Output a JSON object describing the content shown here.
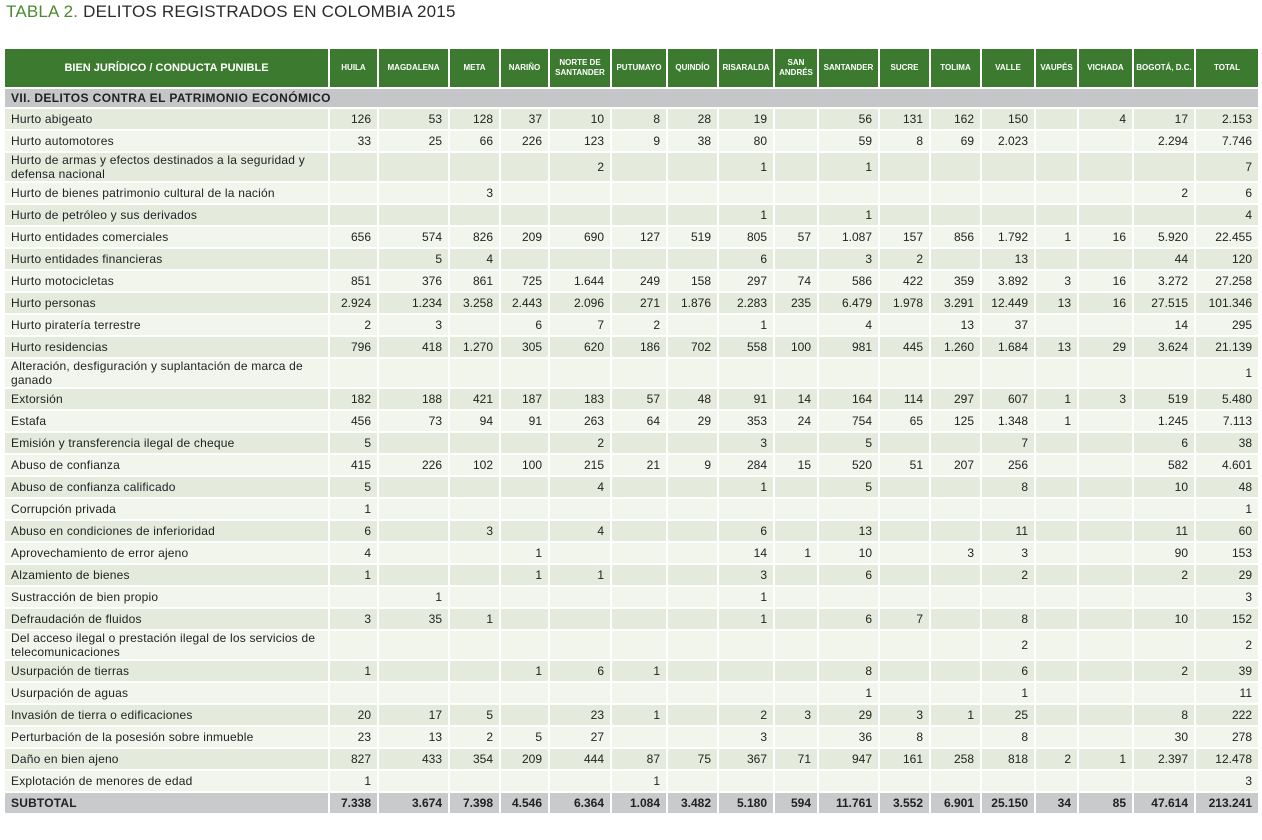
{
  "title": {
    "lead": "TABLA 2.",
    "rest": "DELITOS REGISTRADOS EN COLOMBIA 2015"
  },
  "columns": [
    "BIEN JURÍDICO / CONDUCTA PUNIBLE",
    "HUILA",
    "MAGDALENA",
    "META",
    "NARIÑO",
    "NORTE DE SANTANDER",
    "PUTUMAYO",
    "QUINDÍO",
    "RISARALDA",
    "SAN ANDRÉS",
    "SANTANDER",
    "SUCRE",
    "TOLIMA",
    "VALLE",
    "VAUPÉS",
    "VICHADA",
    "BOGOTÁ, D.C.",
    "TOTAL"
  ],
  "section": "VII. DELITOS CONTRA EL PATRIMONIO ECONÓMICO",
  "rows": [
    {
      "label": "Hurto abigeato",
      "values": [
        "126",
        "53",
        "128",
        "37",
        "10",
        "8",
        "28",
        "19",
        "",
        "56",
        "131",
        "162",
        "150",
        "",
        "4",
        "17",
        "2.153"
      ]
    },
    {
      "label": "Hurto automotores",
      "values": [
        "33",
        "25",
        "66",
        "226",
        "123",
        "9",
        "38",
        "80",
        "",
        "59",
        "8",
        "69",
        "2.023",
        "",
        "",
        "2.294",
        "7.746"
      ]
    },
    {
      "label": "Hurto de armas y efectos destinados a la seguridad y defensa nacional",
      "values": [
        "",
        "",
        "",
        "",
        "2",
        "",
        "",
        "1",
        "",
        "1",
        "",
        "",
        "",
        "",
        "",
        "",
        "7"
      ]
    },
    {
      "label": "Hurto de bienes patrimonio cultural de la nación",
      "values": [
        "",
        "",
        "3",
        "",
        "",
        "",
        "",
        "",
        "",
        "",
        "",
        "",
        "",
        "",
        "",
        "2",
        "6"
      ]
    },
    {
      "label": "Hurto de petróleo y sus derivados",
      "values": [
        "",
        "",
        "",
        "",
        "",
        "",
        "",
        "1",
        "",
        "1",
        "",
        "",
        "",
        "",
        "",
        "",
        "4"
      ]
    },
    {
      "label": "Hurto entidades comerciales",
      "values": [
        "656",
        "574",
        "826",
        "209",
        "690",
        "127",
        "519",
        "805",
        "57",
        "1.087",
        "157",
        "856",
        "1.792",
        "1",
        "16",
        "5.920",
        "22.455"
      ]
    },
    {
      "label": "Hurto entidades financieras",
      "values": [
        "",
        "5",
        "4",
        "",
        "",
        "",
        "",
        "6",
        "",
        "3",
        "2",
        "",
        "13",
        "",
        "",
        "44",
        "120"
      ]
    },
    {
      "label": "Hurto motocicletas",
      "values": [
        "851",
        "376",
        "861",
        "725",
        "1.644",
        "249",
        "158",
        "297",
        "74",
        "586",
        "422",
        "359",
        "3.892",
        "3",
        "16",
        "3.272",
        "27.258"
      ]
    },
    {
      "label": "Hurto personas",
      "values": [
        "2.924",
        "1.234",
        "3.258",
        "2.443",
        "2.096",
        "271",
        "1.876",
        "2.283",
        "235",
        "6.479",
        "1.978",
        "3.291",
        "12.449",
        "13",
        "16",
        "27.515",
        "101.346"
      ]
    },
    {
      "label": "Hurto piratería terrestre",
      "values": [
        "2",
        "3",
        "",
        "6",
        "7",
        "2",
        "",
        "1",
        "",
        "4",
        "",
        "13",
        "37",
        "",
        "",
        "14",
        "295"
      ]
    },
    {
      "label": "Hurto residencias",
      "values": [
        "796",
        "418",
        "1.270",
        "305",
        "620",
        "186",
        "702",
        "558",
        "100",
        "981",
        "445",
        "1.260",
        "1.684",
        "13",
        "29",
        "3.624",
        "21.139"
      ]
    },
    {
      "label": "Alteración, desfiguración y suplantación de marca de ganado",
      "values": [
        "",
        "",
        "",
        "",
        "",
        "",
        "",
        "",
        "",
        "",
        "",
        "",
        "",
        "",
        "",
        "",
        "1"
      ]
    },
    {
      "label": "Extorsión",
      "values": [
        "182",
        "188",
        "421",
        "187",
        "183",
        "57",
        "48",
        "91",
        "14",
        "164",
        "114",
        "297",
        "607",
        "1",
        "3",
        "519",
        "5.480"
      ]
    },
    {
      "label": "Estafa",
      "values": [
        "456",
        "73",
        "94",
        "91",
        "263",
        "64",
        "29",
        "353",
        "24",
        "754",
        "65",
        "125",
        "1.348",
        "1",
        "",
        "1.245",
        "7.113"
      ]
    },
    {
      "label": "Emisión y transferencia ilegal de cheque",
      "values": [
        "5",
        "",
        "",
        "",
        "2",
        "",
        "",
        "3",
        "",
        "5",
        "",
        "",
        "7",
        "",
        "",
        "6",
        "38"
      ]
    },
    {
      "label": "Abuso de confianza",
      "values": [
        "415",
        "226",
        "102",
        "100",
        "215",
        "21",
        "9",
        "284",
        "15",
        "520",
        "51",
        "207",
        "256",
        "",
        "",
        "582",
        "4.601"
      ]
    },
    {
      "label": "Abuso de confianza calificado",
      "values": [
        "5",
        "",
        "",
        "",
        "4",
        "",
        "",
        "1",
        "",
        "5",
        "",
        "",
        "8",
        "",
        "",
        "10",
        "48"
      ]
    },
    {
      "label": "Corrupción privada",
      "values": [
        "1",
        "",
        "",
        "",
        "",
        "",
        "",
        "",
        "",
        "",
        "",
        "",
        "",
        "",
        "",
        "",
        "1"
      ]
    },
    {
      "label": "Abuso en condiciones de inferioridad",
      "values": [
        "6",
        "",
        "3",
        "",
        "4",
        "",
        "",
        "6",
        "",
        "13",
        "",
        "",
        "11",
        "",
        "",
        "11",
        "60"
      ]
    },
    {
      "label": "Aprovechamiento de error ajeno",
      "values": [
        "4",
        "",
        "",
        "1",
        "",
        "",
        "",
        "14",
        "1",
        "10",
        "",
        "3",
        "3",
        "",
        "",
        "90",
        "153"
      ]
    },
    {
      "label": "Alzamiento de bienes",
      "values": [
        "1",
        "",
        "",
        "1",
        "1",
        "",
        "",
        "3",
        "",
        "6",
        "",
        "",
        "2",
        "",
        "",
        "2",
        "29"
      ]
    },
    {
      "label": "Sustracción de bien propio",
      "values": [
        "",
        "1",
        "",
        "",
        "",
        "",
        "",
        "1",
        "",
        "",
        "",
        "",
        "",
        "",
        "",
        "",
        "3"
      ]
    },
    {
      "label": "Defraudación de fluidos",
      "values": [
        "3",
        "35",
        "1",
        "",
        "",
        "",
        "",
        "1",
        "",
        "6",
        "7",
        "",
        "8",
        "",
        "",
        "10",
        "152"
      ]
    },
    {
      "label": "Del acceso ilegal o prestación ilegal de los servicios de telecomunicaciones",
      "values": [
        "",
        "",
        "",
        "",
        "",
        "",
        "",
        "",
        "",
        "",
        "",
        "",
        "2",
        "",
        "",
        "",
        "2"
      ]
    },
    {
      "label": "Usurpación de tierras",
      "values": [
        "1",
        "",
        "",
        "1",
        "6",
        "1",
        "",
        "",
        "",
        "8",
        "",
        "",
        "6",
        "",
        "",
        "2",
        "39"
      ]
    },
    {
      "label": "Usurpación de aguas",
      "values": [
        "",
        "",
        "",
        "",
        "",
        "",
        "",
        "",
        "",
        "1",
        "",
        "",
        "1",
        "",
        "",
        "",
        "11"
      ]
    },
    {
      "label": "Invasión de tierra o edificaciones",
      "values": [
        "20",
        "17",
        "5",
        "",
        "23",
        "1",
        "",
        "2",
        "3",
        "29",
        "3",
        "1",
        "25",
        "",
        "",
        "8",
        "222"
      ]
    },
    {
      "label": "Perturbación de la posesión sobre inmueble",
      "values": [
        "23",
        "13",
        "2",
        "5",
        "27",
        "",
        "",
        "3",
        "",
        "36",
        "8",
        "",
        "8",
        "",
        "",
        "30",
        "278"
      ]
    },
    {
      "label": "Daño en bien ajeno",
      "values": [
        "827",
        "433",
        "354",
        "209",
        "444",
        "87",
        "75",
        "367",
        "71",
        "947",
        "161",
        "258",
        "818",
        "2",
        "1",
        "2.397",
        "12.478"
      ]
    },
    {
      "label": "Explotación de menores de edad",
      "values": [
        "1",
        "",
        "",
        "",
        "",
        "1",
        "",
        "",
        "",
        "",
        "",
        "",
        "",
        "",
        "",
        "",
        "3"
      ]
    }
  ],
  "subtotal": {
    "label": "SUBTOTAL",
    "values": [
      "7.338",
      "3.674",
      "7.398",
      "4.546",
      "6.364",
      "1.084",
      "3.482",
      "5.180",
      "594",
      "11.761",
      "3.552",
      "6.901",
      "25.150",
      "34",
      "85",
      "47.614",
      "213.241"
    ]
  }
}
